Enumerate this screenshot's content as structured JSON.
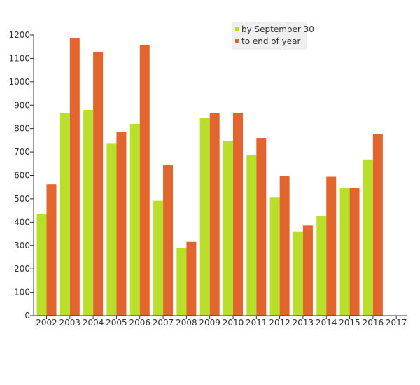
{
  "chart_data": {
    "type": "bar",
    "categories": [
      "2002",
      "2003",
      "2004",
      "2005",
      "2006",
      "2007",
      "2008",
      "2009",
      "2010",
      "2011",
      "2012",
      "2013",
      "2014",
      "2015",
      "2016",
      "2017"
    ],
    "series": [
      {
        "name": "by September 30",
        "color": "#b8e02a",
        "values": [
          435,
          865,
          880,
          738,
          820,
          492,
          290,
          846,
          748,
          688,
          505,
          360,
          428,
          545,
          668,
          0
        ]
      },
      {
        "name": "to end of year",
        "color": "#e2652d",
        "values": [
          562,
          1185,
          1126,
          784,
          1156,
          645,
          315,
          866,
          868,
          760,
          597,
          385,
          594,
          545,
          778,
          0
        ]
      }
    ],
    "y_ticks": [
      "0",
      "100",
      "200",
      "300",
      "400",
      "500",
      "600",
      "700",
      "800",
      "900",
      "1000",
      "1100",
      "1200"
    ],
    "ylim": [
      0,
      1200
    ],
    "grid": false,
    "legend_position": "top-right"
  }
}
